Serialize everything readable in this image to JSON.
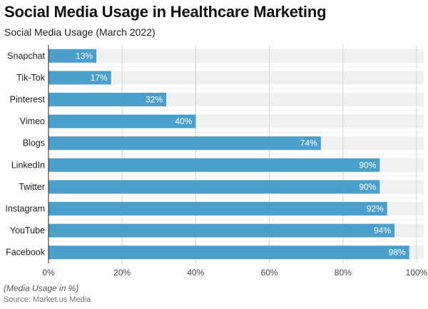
{
  "title": "Social Media Usage in Healthcare Marketing",
  "subtitle": "Social Media Usage (March 2022)",
  "note": "(Media Usage in %)",
  "source": "Source: Market.us Media",
  "colors": {
    "bar": "#4a9fcb",
    "track": "#f0f0f0",
    "grid": "#d4d4d4"
  },
  "chart_data": {
    "type": "bar",
    "orientation": "horizontal",
    "title": "Social Media Usage in Healthcare Marketing",
    "subtitle": "Social Media Usage (March 2022)",
    "xlabel": "(Media Usage in %)",
    "ylabel": "",
    "categories": [
      "Snapchat",
      "Tik-Tok",
      "Pinterest",
      "Vimeo",
      "Blogs",
      "LinkedIn",
      "Twitter",
      "Instagram",
      "YouTube",
      "Facebook"
    ],
    "values": [
      13,
      17,
      32,
      40,
      74,
      90,
      90,
      92,
      94,
      98
    ],
    "value_labels": [
      "13%",
      "17%",
      "32%",
      "40%",
      "74%",
      "90%",
      "90%",
      "92%",
      "94%",
      "98%"
    ],
    "xlim": [
      0,
      100
    ],
    "x_ticks": [
      0,
      20,
      40,
      60,
      80,
      100
    ],
    "x_tick_labels": [
      "0%",
      "20%",
      "40%",
      "60%",
      "80%",
      "100%"
    ],
    "grid": true,
    "legend": "none"
  }
}
